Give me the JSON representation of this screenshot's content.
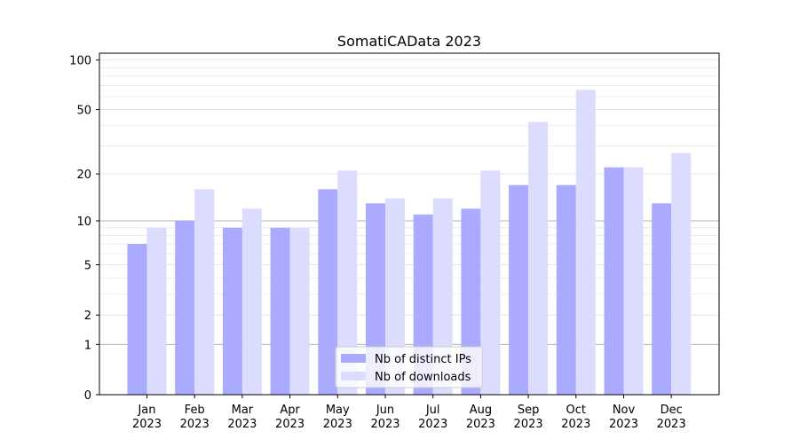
{
  "chart_data": {
    "type": "bar",
    "title": "SomatiCAData 2023",
    "xlabel": "",
    "ylabel": "",
    "categories": [
      [
        "Jan",
        "2023"
      ],
      [
        "Feb",
        "2023"
      ],
      [
        "Mar",
        "2023"
      ],
      [
        "Apr",
        "2023"
      ],
      [
        "May",
        "2023"
      ],
      [
        "Jun",
        "2023"
      ],
      [
        "Jul",
        "2023"
      ],
      [
        "Aug",
        "2023"
      ],
      [
        "Sep",
        "2023"
      ],
      [
        "Oct",
        "2023"
      ],
      [
        "Nov",
        "2023"
      ],
      [
        "Dec",
        "2023"
      ]
    ],
    "series": [
      {
        "name": "Nb of distinct IPs",
        "color": "#aaaaff",
        "values": [
          7,
          10,
          9,
          9,
          16,
          13,
          11,
          12,
          17,
          17,
          22,
          13
        ]
      },
      {
        "name": "Nb of downloads",
        "color": "#dcdcff",
        "values": [
          9,
          16,
          12,
          9,
          21,
          14,
          14,
          21,
          42,
          66,
          22,
          27
        ]
      }
    ],
    "y_scale": "log(1+y)",
    "ylim": [
      0,
      110
    ],
    "yticks": [
      0,
      1,
      2,
      5,
      10,
      20,
      50,
      100
    ],
    "grid": "horizontal",
    "legend_position": "lower center"
  }
}
